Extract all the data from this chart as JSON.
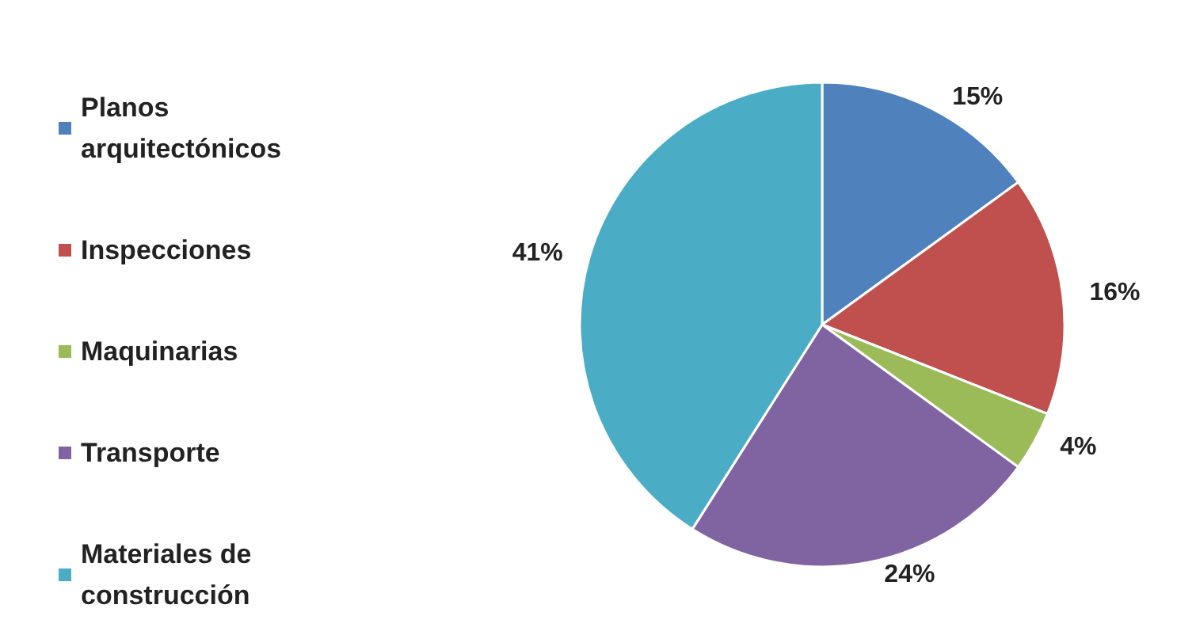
{
  "chart_data": {
    "type": "pie",
    "categories": [
      "Planos arquitectónicos",
      "Inspecciones",
      "Maquinarias",
      "Transporte",
      "Materiales de construcción"
    ],
    "values": [
      15,
      16,
      4,
      24,
      41
    ],
    "value_labels": [
      "15%",
      "16%",
      "4%",
      "24%",
      "41%"
    ],
    "colors": [
      "#4f81bd",
      "#c0504d",
      "#9bbb59",
      "#8064a2",
      "#4bacc6"
    ],
    "legend": "left"
  }
}
